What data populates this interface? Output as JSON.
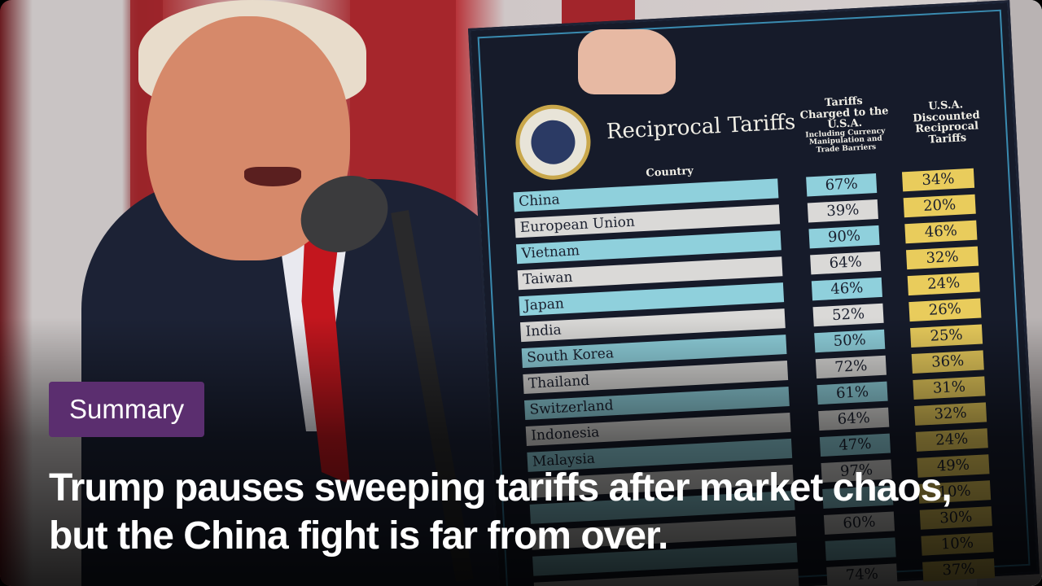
{
  "card": {
    "badge": "Summary",
    "headline": "Trump pauses sweeping tariffs after market chaos, but the China fight is far from over."
  },
  "board": {
    "title": "Reciprocal Tariffs",
    "col_country": "Country",
    "col_charged": "Tariffs Charged to the U.S.A.",
    "col_charged_note": "Including Currency Manipulation and Trade Barriers",
    "col_us": "U.S.A. Discounted Reciprocal Tariffs",
    "rows": [
      {
        "country": "China",
        "charged": "67%",
        "us": "34%"
      },
      {
        "country": "European Union",
        "charged": "39%",
        "us": "20%"
      },
      {
        "country": "Vietnam",
        "charged": "90%",
        "us": "46%"
      },
      {
        "country": "Taiwan",
        "charged": "64%",
        "us": "32%"
      },
      {
        "country": "Japan",
        "charged": "46%",
        "us": "24%"
      },
      {
        "country": "India",
        "charged": "52%",
        "us": "26%"
      },
      {
        "country": "South Korea",
        "charged": "50%",
        "us": "25%"
      },
      {
        "country": "Thailand",
        "charged": "72%",
        "us": "36%"
      },
      {
        "country": "Switzerland",
        "charged": "61%",
        "us": "31%"
      },
      {
        "country": "Indonesia",
        "charged": "64%",
        "us": "32%"
      },
      {
        "country": "Malaysia",
        "charged": "47%",
        "us": "24%"
      },
      {
        "country": "",
        "charged": "97%",
        "us": "49%"
      },
      {
        "country": "",
        "charged": "",
        "us": "10%"
      },
      {
        "country": "",
        "charged": "60%",
        "us": "30%"
      },
      {
        "country": "",
        "charged": "",
        "us": "10%"
      },
      {
        "country": "",
        "charged": "74%",
        "us": "37%"
      }
    ]
  }
}
